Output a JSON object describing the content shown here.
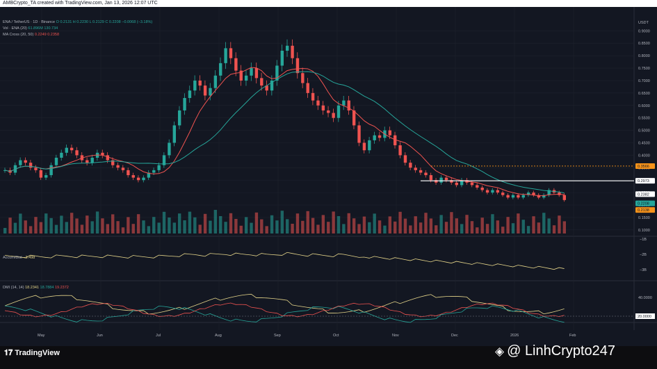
{
  "header": {
    "caption": "AMBCrypto_TA created with TradingView.com, Jan 13, 2026 12:07 UTC"
  },
  "legend": {
    "symbol": "ENA / TetherUS · 1D · Binance",
    "ohlc": "O 0.2131  H 0.2230  L 0.2129  C 0.2208  −0.0068 (−3.18%)",
    "vol": "Vol · ENA (20)",
    "vol_values": "61.896M  130.734",
    "ma": "MA Cross (20, 50)",
    "ma_values": "0.2249  0.2358",
    "accum_label": "Accum/Dist",
    "accum_value": "−3.498",
    "dmi_label": "DMI (14, 14)",
    "dmi_values": [
      "18.2341",
      "18.7884",
      "19.2372"
    ]
  },
  "chart_data": {
    "type": "candlestick",
    "quote": "USDT",
    "price_axis": [
      "0.9000",
      "0.8500",
      "0.8000",
      "0.7500",
      "0.7000",
      "0.6500",
      "0.6000",
      "0.5500",
      "0.5000",
      "0.4500",
      "0.4000",
      "0.3500",
      "0.3000",
      "0.2500",
      "0.2000",
      "0.1500",
      "0.1000"
    ],
    "months": [
      "May",
      "Jun",
      "Jul",
      "Aug",
      "Sep",
      "Oct",
      "Nov",
      "Dec",
      "2026",
      "Feb"
    ],
    "close": [
      0.34,
      0.33,
      0.36,
      0.38,
      0.37,
      0.35,
      0.34,
      0.31,
      0.32,
      0.36,
      0.39,
      0.41,
      0.43,
      0.42,
      0.4,
      0.38,
      0.37,
      0.39,
      0.41,
      0.4,
      0.38,
      0.36,
      0.35,
      0.34,
      0.32,
      0.31,
      0.3,
      0.31,
      0.33,
      0.34,
      0.36,
      0.4,
      0.45,
      0.52,
      0.58,
      0.63,
      0.66,
      0.7,
      0.68,
      0.64,
      0.67,
      0.72,
      0.77,
      0.83,
      0.79,
      0.74,
      0.7,
      0.72,
      0.75,
      0.71,
      0.68,
      0.66,
      0.7,
      0.76,
      0.82,
      0.84,
      0.79,
      0.73,
      0.69,
      0.65,
      0.62,
      0.6,
      0.58,
      0.57,
      0.55,
      0.6,
      0.62,
      0.58,
      0.52,
      0.45,
      0.42,
      0.46,
      0.48,
      0.47,
      0.5,
      0.48,
      0.44,
      0.4,
      0.37,
      0.35,
      0.34,
      0.33,
      0.32,
      0.3,
      0.29,
      0.31,
      0.3,
      0.29,
      0.28,
      0.3,
      0.29,
      0.28,
      0.27,
      0.26,
      0.25,
      0.26,
      0.25,
      0.24,
      0.23,
      0.24,
      0.23,
      0.24,
      0.25,
      0.24,
      0.23,
      0.24,
      0.26,
      0.25,
      0.24,
      0.22
    ],
    "horizontal_levels": [
      "0.2973"
    ],
    "price_labels": [
      {
        "text": "0.3566",
        "color": "#f7931a"
      },
      {
        "text": "0.2973",
        "color": "#ffffff"
      },
      {
        "text": "0.2382",
        "color": "#ffffff"
      },
      {
        "text": "0.2208",
        "color": "#26a69a"
      },
      {
        "text": "0.2138",
        "color": "#f7931a"
      }
    ],
    "accum_ticks": [
      "−1B",
      "−2B",
      "−3B"
    ],
    "dmi_ticks": [
      "40.0000",
      "20.0000"
    ],
    "ma_fast_color": "#ef5350",
    "ma_slow_color": "#26a69a"
  },
  "branding": {
    "tradingview": "TradingView",
    "watermark": "@ LinhCrypto247"
  }
}
